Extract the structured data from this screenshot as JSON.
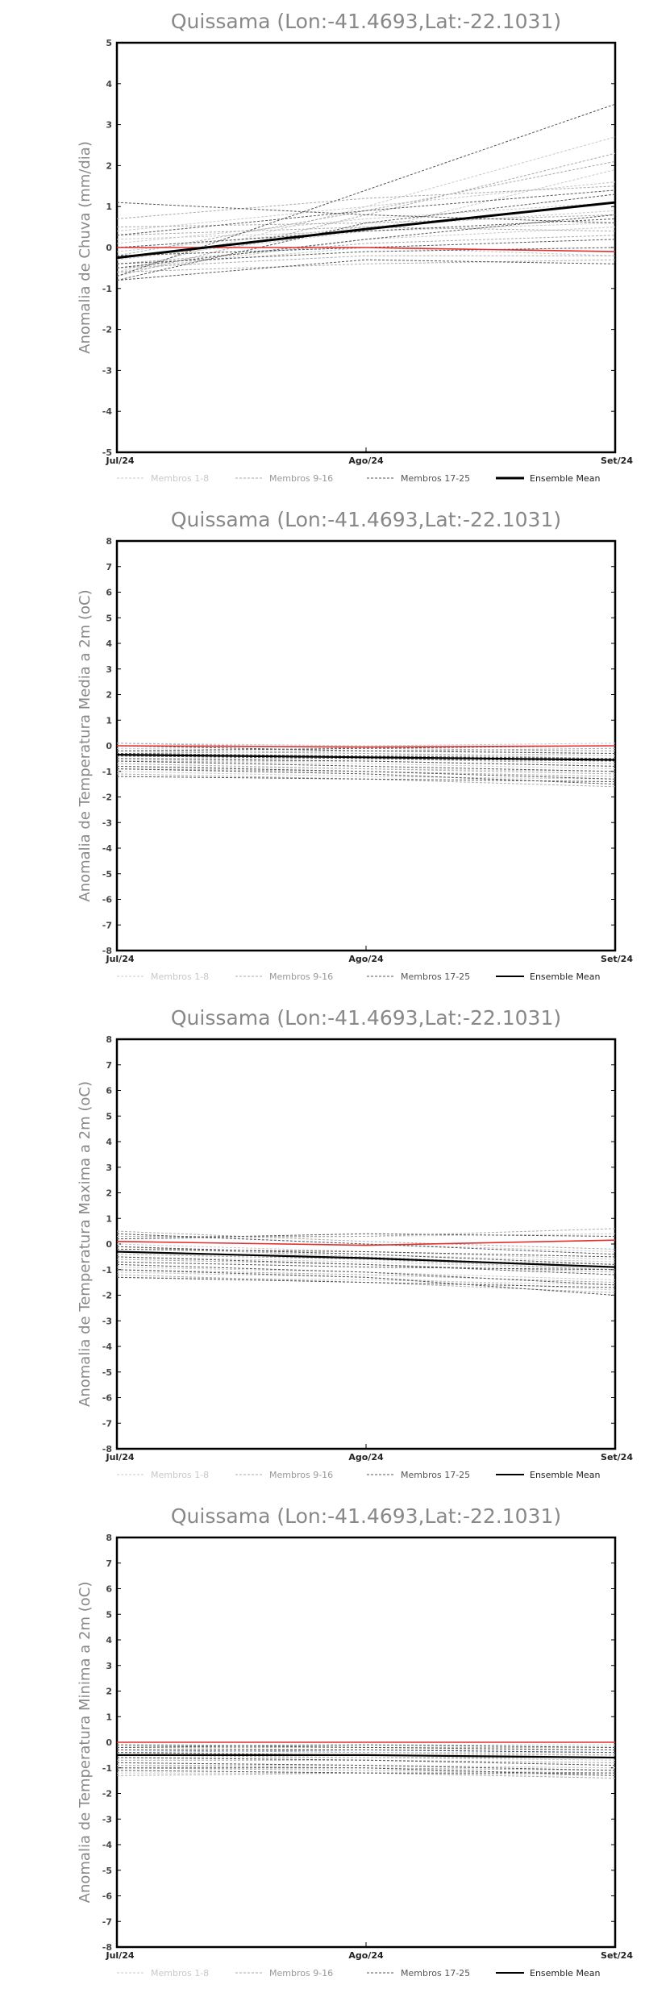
{
  "chart_data": [
    {
      "type": "line",
      "title": "Quissama (Lon:-41.4693,Lat:-22.1031)",
      "ylabel": "Anomalia de Chuva (mm/dia)",
      "x": [
        "Jul/24",
        "Ago/24",
        "Set/24"
      ],
      "ylim": [
        -5,
        5
      ],
      "yticks": [
        -5,
        -4,
        -3,
        -2,
        -1,
        0,
        1,
        2,
        3,
        4,
        5
      ],
      "legend": [
        "Membros 1-8",
        "Membros 9-16",
        "Membros 17-25",
        "Ensemble Mean"
      ],
      "legend_placement": "bottom",
      "grid": false,
      "colors": {
        "members_1_8": "#c8c8c8",
        "members_9_16": "#aaaaaa",
        "members_17_25": "#555555",
        "ensemble_mean": "#000000",
        "reference": "#e03030"
      },
      "reference": [
        0.0,
        0.0,
        -0.1
      ],
      "ensemble_mean": [
        -0.25,
        0.45,
        1.1
      ],
      "members_1_8": [
        [
          -0.6,
          1.0,
          2.7
        ],
        [
          0.1,
          0.7,
          1.1
        ],
        [
          -0.3,
          0.4,
          1.9
        ],
        [
          0.4,
          1.0,
          1.6
        ],
        [
          -0.6,
          0.2,
          0.5
        ],
        [
          -0.1,
          0.5,
          0.9
        ],
        [
          -0.5,
          0.0,
          -0.2
        ],
        [
          0.2,
          0.4,
          0.6
        ]
      ],
      "members_9_16": [
        [
          -0.7,
          0.8,
          2.3
        ],
        [
          0.5,
          0.6,
          0.8
        ],
        [
          -0.4,
          0.1,
          0.3
        ],
        [
          -0.2,
          0.9,
          2.1
        ],
        [
          0.3,
          0.5,
          0.4
        ],
        [
          -0.5,
          -0.2,
          -0.2
        ],
        [
          0.7,
          1.2,
          1.5
        ],
        [
          -0.6,
          -0.4,
          -0.3
        ]
      ],
      "members_17_25": [
        [
          -0.7,
          1.4,
          3.5
        ],
        [
          1.1,
          0.8,
          0.6
        ],
        [
          -0.8,
          0.6,
          1.3
        ],
        [
          -0.5,
          0.2,
          0.8
        ],
        [
          0.3,
          0.9,
          1.4
        ],
        [
          -0.4,
          -0.1,
          0.0
        ],
        [
          -0.8,
          -0.3,
          -0.4
        ],
        [
          0.0,
          0.4,
          0.7
        ],
        [
          -0.2,
          0.0,
          0.2
        ]
      ]
    },
    {
      "type": "line",
      "title": "Quissama (Lon:-41.4693,Lat:-22.1031)",
      "ylabel": "Anomalia de Temperatura Media a 2m (oC)",
      "x": [
        "Jul/24",
        "Ago/24",
        "Set/24"
      ],
      "ylim": [
        -8,
        8
      ],
      "yticks": [
        -8,
        -7,
        -6,
        -5,
        -4,
        -3,
        -2,
        -1,
        0,
        1,
        2,
        3,
        4,
        5,
        6,
        7,
        8
      ],
      "legend": [
        "Membros 1-8",
        "Membros 9-16",
        "Membros 17-25",
        "Ensemble Mean"
      ],
      "legend_placement": "bottom",
      "grid": false,
      "colors": {
        "members_1_8": "#c8c8c8",
        "members_9_16": "#aaaaaa",
        "members_17_25": "#555555",
        "ensemble_mean": "#000000",
        "reference": "#e03030"
      },
      "reference": [
        0.0,
        -0.05,
        0.0
      ],
      "ensemble_mean": [
        -0.35,
        -0.45,
        -0.55
      ],
      "members_1_8": [
        [
          0.1,
          0.0,
          0.1
        ],
        [
          -0.2,
          -0.3,
          -0.4
        ],
        [
          -0.6,
          -0.7,
          -0.9
        ],
        [
          -1.0,
          -1.2,
          -1.3
        ],
        [
          -0.1,
          -0.2,
          -0.2
        ],
        [
          -0.5,
          -0.5,
          -0.6
        ],
        [
          -0.3,
          -0.4,
          -0.3
        ],
        [
          -0.8,
          -0.9,
          -1.0
        ]
      ],
      "members_9_16": [
        [
          0.1,
          -0.1,
          -0.2
        ],
        [
          -0.4,
          -0.5,
          -0.7
        ],
        [
          -0.7,
          -0.9,
          -1.1
        ],
        [
          -1.1,
          -1.3,
          -1.6
        ],
        [
          -0.2,
          -0.3,
          -0.5
        ],
        [
          -0.6,
          -0.6,
          -0.8
        ],
        [
          -0.9,
          -1.0,
          -1.2
        ],
        [
          -0.3,
          -0.2,
          -0.1
        ]
      ],
      "members_17_25": [
        [
          0.0,
          -0.2,
          -0.3
        ],
        [
          -0.5,
          -0.6,
          -0.8
        ],
        [
          -0.8,
          -1.0,
          -1.3
        ],
        [
          -1.2,
          -1.3,
          -1.4
        ],
        [
          -0.3,
          -0.4,
          -0.5
        ],
        [
          -0.6,
          -0.8,
          -1.0
        ],
        [
          -0.2,
          -0.1,
          0.0
        ],
        [
          -0.9,
          -1.1,
          -1.5
        ],
        [
          -0.4,
          -0.5,
          -0.6
        ]
      ]
    },
    {
      "type": "line",
      "title": "Quissama (Lon:-41.4693,Lat:-22.1031)",
      "ylabel": "Anomalia de Temperatura Maxima a 2m (oC)",
      "x": [
        "Jul/24",
        "Ago/24",
        "Set/24"
      ],
      "ylim": [
        -8,
        8
      ],
      "yticks": [
        -8,
        -7,
        -6,
        -5,
        -4,
        -3,
        -2,
        -1,
        0,
        1,
        2,
        3,
        4,
        5,
        6,
        7,
        8
      ],
      "legend": [
        "Membros 1-8",
        "Membros 9-16",
        "Membros 17-25",
        "Ensemble Mean"
      ],
      "legend_placement": "bottom",
      "grid": false,
      "colors": {
        "members_1_8": "#c8c8c8",
        "members_9_16": "#aaaaaa",
        "members_17_25": "#555555",
        "ensemble_mean": "#000000",
        "reference": "#e03030"
      },
      "reference": [
        0.1,
        -0.05,
        0.15
      ],
      "ensemble_mean": [
        -0.3,
        -0.55,
        -0.9
      ],
      "members_1_8": [
        [
          0.4,
          0.0,
          -0.3
        ],
        [
          -0.2,
          -0.4,
          -0.7
        ],
        [
          -0.9,
          -1.1,
          -1.4
        ],
        [
          -1.3,
          -1.4,
          -1.6
        ],
        [
          0.2,
          0.3,
          0.4
        ],
        [
          -0.5,
          -0.7,
          -1.0
        ],
        [
          0.0,
          -0.3,
          -0.6
        ],
        [
          -1.1,
          -1.3,
          -1.8
        ]
      ],
      "members_9_16": [
        [
          0.5,
          0.1,
          -0.2
        ],
        [
          -0.3,
          -0.6,
          -1.0
        ],
        [
          -1.0,
          -1.2,
          -1.5
        ],
        [
          -0.6,
          -0.8,
          -1.1
        ],
        [
          0.3,
          0.3,
          0.6
        ],
        [
          -0.1,
          -0.5,
          -0.9
        ],
        [
          -1.2,
          -1.5,
          -1.9
        ],
        [
          -0.4,
          -0.6,
          -0.8
        ]
      ],
      "members_17_25": [
        [
          0.4,
          0.0,
          -0.4
        ],
        [
          -0.1,
          -0.4,
          -0.8
        ],
        [
          -0.8,
          -1.1,
          -1.6
        ],
        [
          -1.0,
          -1.3,
          -2.0
        ],
        [
          0.2,
          0.4,
          0.3
        ],
        [
          -0.5,
          -0.8,
          -1.2
        ],
        [
          -0.7,
          -0.9,
          -1.0
        ],
        [
          -0.2,
          -0.3,
          -0.5
        ],
        [
          -1.3,
          -1.5,
          -1.7
        ]
      ]
    },
    {
      "type": "line",
      "title": "Quissama (Lon:-41.4693,Lat:-22.1031)",
      "ylabel": "Anomalia de Temperatura Minima a 2m (oC)",
      "x": [
        "Jul/24",
        "Ago/24",
        "Set/24"
      ],
      "ylim": [
        -8,
        8
      ],
      "yticks": [
        -8,
        -7,
        -6,
        -5,
        -4,
        -3,
        -2,
        -1,
        0,
        1,
        2,
        3,
        4,
        5,
        6,
        7,
        8
      ],
      "legend": [
        "Membros 1-8",
        "Membros 9-16",
        "Membros 17-25",
        "Ensemble Mean"
      ],
      "legend_placement": "bottom",
      "grid": false,
      "colors": {
        "members_1_8": "#c8c8c8",
        "members_9_16": "#aaaaaa",
        "members_17_25": "#555555",
        "ensemble_mean": "#000000",
        "reference": "#e03030"
      },
      "reference": [
        0.0,
        0.0,
        0.0
      ],
      "ensemble_mean": [
        -0.5,
        -0.5,
        -0.6
      ],
      "members_1_8": [
        [
          -0.1,
          -0.1,
          -0.1
        ],
        [
          -0.4,
          -0.5,
          -0.5
        ],
        [
          -0.8,
          -0.9,
          -1.0
        ],
        [
          -1.2,
          -1.2,
          -1.3
        ],
        [
          -0.2,
          -0.3,
          -0.3
        ],
        [
          -0.6,
          -0.6,
          -0.7
        ],
        [
          -0.3,
          -0.4,
          -0.4
        ],
        [
          -0.9,
          -0.9,
          -1.0
        ]
      ],
      "members_9_16": [
        [
          -0.2,
          -0.2,
          -0.2
        ],
        [
          -0.5,
          -0.6,
          -0.6
        ],
        [
          -0.9,
          -1.0,
          -1.1
        ],
        [
          -1.3,
          -1.2,
          -1.4
        ],
        [
          -0.3,
          -0.4,
          -0.5
        ],
        [
          -0.7,
          -0.7,
          -0.8
        ],
        [
          -1.0,
          -1.1,
          -1.2
        ],
        [
          -0.4,
          -0.3,
          -0.4
        ]
      ],
      "members_17_25": [
        [
          -0.1,
          -0.2,
          -0.3
        ],
        [
          -0.5,
          -0.5,
          -0.6
        ],
        [
          -0.8,
          -0.9,
          -1.1
        ],
        [
          -1.1,
          -1.2,
          -1.2
        ],
        [
          -0.3,
          -0.3,
          -0.4
        ],
        [
          -0.6,
          -0.7,
          -0.9
        ],
        [
          -0.2,
          -0.1,
          -0.2
        ],
        [
          -1.0,
          -1.0,
          -1.3
        ],
        [
          -0.4,
          -0.5,
          -0.6
        ]
      ]
    }
  ]
}
